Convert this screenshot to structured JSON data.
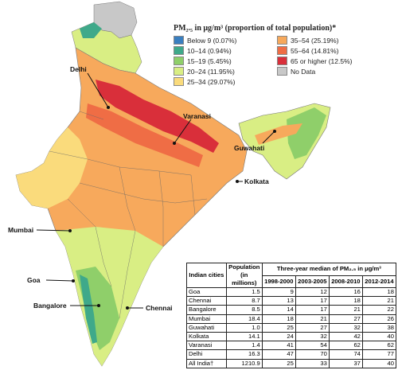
{
  "legend": {
    "title": "PM₂.₅ in μg/m³ (proportion of total population)*",
    "items": [
      {
        "label": "Below 9 (0.07%)",
        "color": "#3a7fc0"
      },
      {
        "label": "10–14 (0.94%)",
        "color": "#3fa98a"
      },
      {
        "label": "15–19 (5.45%)",
        "color": "#8fcf6a"
      },
      {
        "label": "20–24 (11.95%)",
        "color": "#d9ee84"
      },
      {
        "label": "25–34 (29.07%)",
        "color": "#fadb7c"
      },
      {
        "label": "35–54 (25.19%)",
        "color": "#f7a95c"
      },
      {
        "label": "55–64 (14.81%)",
        "color": "#ef6d45"
      },
      {
        "label": "65 or higher (12.5%)",
        "color": "#d92f3a"
      },
      {
        "label": "No Data",
        "color": "#c8c8c8"
      }
    ]
  },
  "cities": [
    {
      "name": "Delhi"
    },
    {
      "name": "Varanasi"
    },
    {
      "name": "Guwahati"
    },
    {
      "name": "Kolkata"
    },
    {
      "name": "Mumbai"
    },
    {
      "name": "Goa"
    },
    {
      "name": "Bangalore"
    },
    {
      "name": "Chennai"
    }
  ],
  "table": {
    "header_city": "Indian cities",
    "header_population": "Population (in millions)",
    "header_group": "Three-year median of PM₂.₅ in μg/m³",
    "periods": [
      "1998-2000",
      "2003-2005",
      "2008-2010",
      "2012-2014"
    ],
    "rows": [
      {
        "city": "Goa",
        "pop": "1.5",
        "v": [
          "9",
          "12",
          "16",
          "18"
        ]
      },
      {
        "city": "Chennai",
        "pop": "8.7",
        "v": [
          "13",
          "17",
          "18",
          "21"
        ]
      },
      {
        "city": "Bangalore",
        "pop": "8.5",
        "v": [
          "14",
          "17",
          "21",
          "22"
        ]
      },
      {
        "city": "Mumbai",
        "pop": "18.4",
        "v": [
          "18",
          "21",
          "27",
          "26"
        ]
      },
      {
        "city": "Guwahati",
        "pop": "1.0",
        "v": [
          "25",
          "27",
          "32",
          "38"
        ]
      },
      {
        "city": "Kolkata",
        "pop": "14.1",
        "v": [
          "24",
          "32",
          "42",
          "40"
        ]
      },
      {
        "city": "Varanasi",
        "pop": "1.4",
        "v": [
          "41",
          "54",
          "62",
          "62"
        ]
      },
      {
        "city": "Delhi",
        "pop": "16.3",
        "v": [
          "47",
          "70",
          "74",
          "77"
        ]
      },
      {
        "city": "All India†",
        "pop": "1210.9",
        "v": [
          "25",
          "33",
          "37",
          "40"
        ]
      }
    ]
  }
}
